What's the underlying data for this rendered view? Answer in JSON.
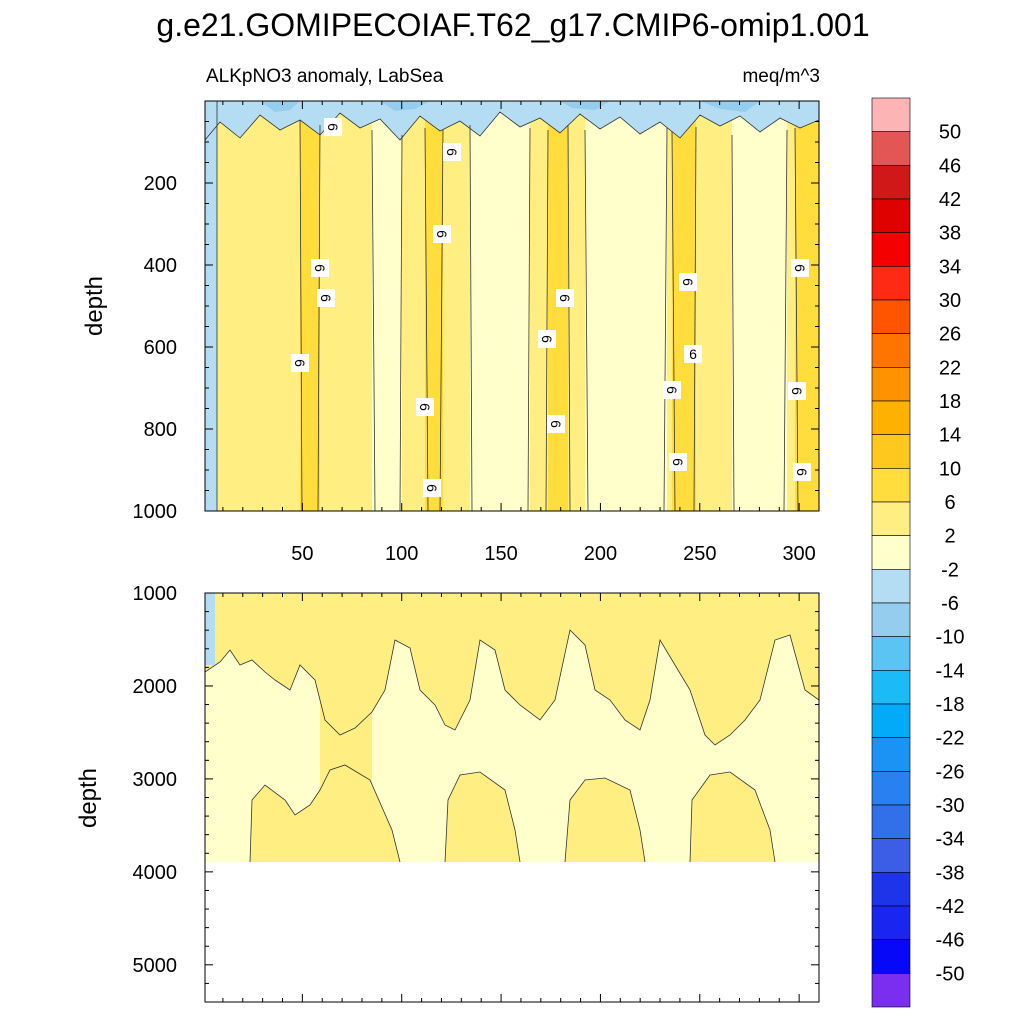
{
  "title": "g.e21.GOMIPECOIAF.T62_g17.CMIP6-omip1.001",
  "subtitle_left": "ALKpNO3 anomaly, LabSea",
  "subtitle_right": "meq/m^3",
  "chart_data": {
    "type": "contour",
    "title": "g.e21.GOMIPECOIAF.T62_g17.CMIP6-omip1.001",
    "variable": "ALKpNO3 anomaly, LabSea",
    "units": "meq/m^3",
    "panels": [
      {
        "name": "upper",
        "xlim": [
          1,
          310
        ],
        "ylim": [
          0,
          1000
        ],
        "ylabel": "depth",
        "x_ticks": [
          50,
          100,
          150,
          200,
          250,
          300
        ],
        "y_ticks": [
          200,
          400,
          600,
          800,
          1000
        ],
        "contour_labels": [
          "6",
          "6",
          "6",
          "6",
          "6",
          "6",
          "6",
          "6",
          "6",
          "6",
          "6",
          "6",
          "6",
          "6",
          "6",
          "6",
          "6",
          "6",
          "6",
          "6"
        ]
      },
      {
        "name": "lower",
        "xlim": [
          1,
          310
        ],
        "ylim": [
          1000,
          5400
        ],
        "ylabel": "depth",
        "y_ticks": [
          1000,
          2000,
          3000,
          4000,
          5000
        ],
        "data_bottom_depth": 3870
      }
    ],
    "colorbar": {
      "labels": [
        "50",
        "46",
        "42",
        "38",
        "34",
        "30",
        "26",
        "22",
        "18",
        "14",
        "10",
        "6",
        "2",
        "-2",
        "-6",
        "-10",
        "-14",
        "-18",
        "-22",
        "-26",
        "-30",
        "-34",
        "-38",
        "-42",
        "-46",
        "-50"
      ],
      "colors": [
        "#fcb4b4",
        "#e35656",
        "#d01818",
        "#df0000",
        "#f50000",
        "#ff2a14",
        "#ff5500",
        "#ff7500",
        "#ff9200",
        "#ffb100",
        "#ffc81e",
        "#ffdd3c",
        "#ffee82",
        "#ffffcc",
        "#b4dcf2",
        "#95cdee",
        "#5bc4f2",
        "#1cbaf6",
        "#03aaf8",
        "#1b93f5",
        "#2881ee",
        "#3270ea",
        "#3c5de6",
        "#1e34e8",
        "#1a25f0",
        "#0808f8",
        "#7a2ef0"
      ]
    }
  }
}
